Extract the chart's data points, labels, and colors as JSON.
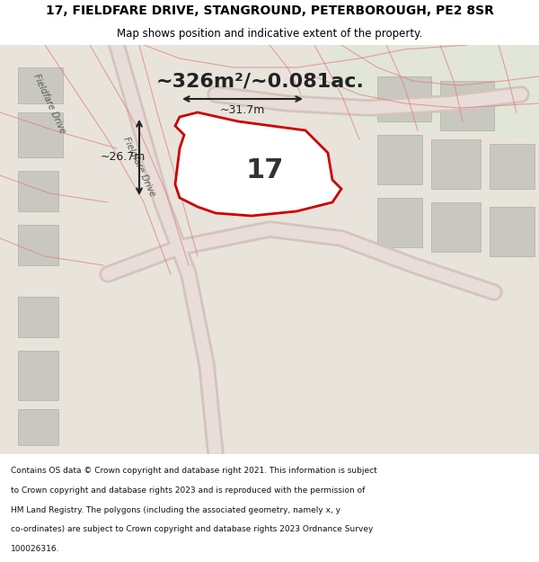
{
  "title_line1": "17, FIELDFARE DRIVE, STANGROUND, PETERBOROUGH, PE2 8SR",
  "title_line2": "Map shows position and indicative extent of the property.",
  "area_text": "~326m²/~0.081ac.",
  "dim_vertical": "~26.7m",
  "dim_horizontal": "~31.7m",
  "property_label": "17",
  "footer_text": "Contains OS data © Crown copyright and database right 2021. This information is subject to Crown copyright and database rights 2023 and is reproduced with the permission of HM Land Registry. The polygons (including the associated geometry, namely x, y co-ordinates) are subject to Crown copyright and database rights 2023 Ordnance Survey 100026316.",
  "map_bg_color": "#e8e4dc",
  "map_area_color": "#f0ede6",
  "property_fill": "#ffffff",
  "property_edge": "#cc0000",
  "road_color": "#c8b8b8",
  "road_line_color": "#e08080",
  "header_bg": "#ffffff",
  "footer_bg": "#ffffff",
  "map_secondary_bg": "#dde8d8"
}
